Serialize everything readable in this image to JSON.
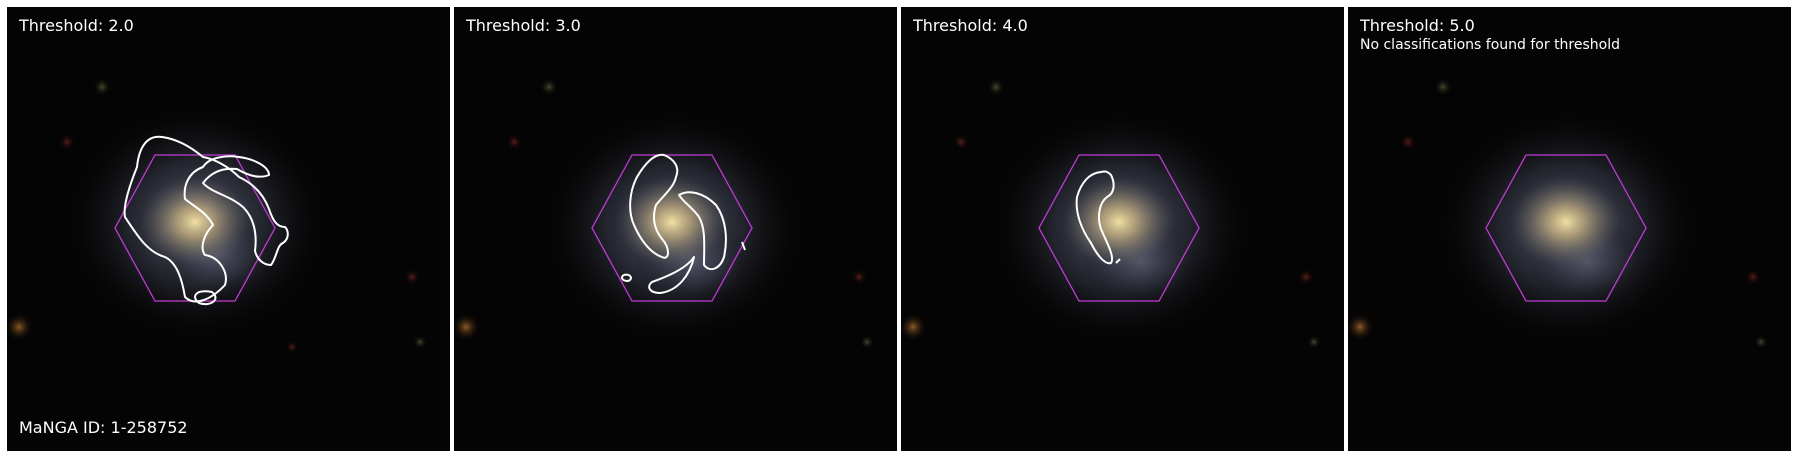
{
  "panels": [
    {
      "title": "Threshold: 2.0"
    },
    {
      "title": "Threshold: 3.0"
    },
    {
      "title": "Threshold: 4.0"
    },
    {
      "title": "Threshold: 5.0",
      "subtitle": "No classifications found for threshold"
    }
  ],
  "manga_id": "MaNGA ID: 1-258752",
  "colors": {
    "background": "#050404",
    "galaxy_core": "#e8d29a",
    "hexagon": "#c23ad6",
    "contour": "#ffffff"
  },
  "icons": [
    "galaxy-image",
    "hexagon-outline",
    "contour-outline"
  ]
}
